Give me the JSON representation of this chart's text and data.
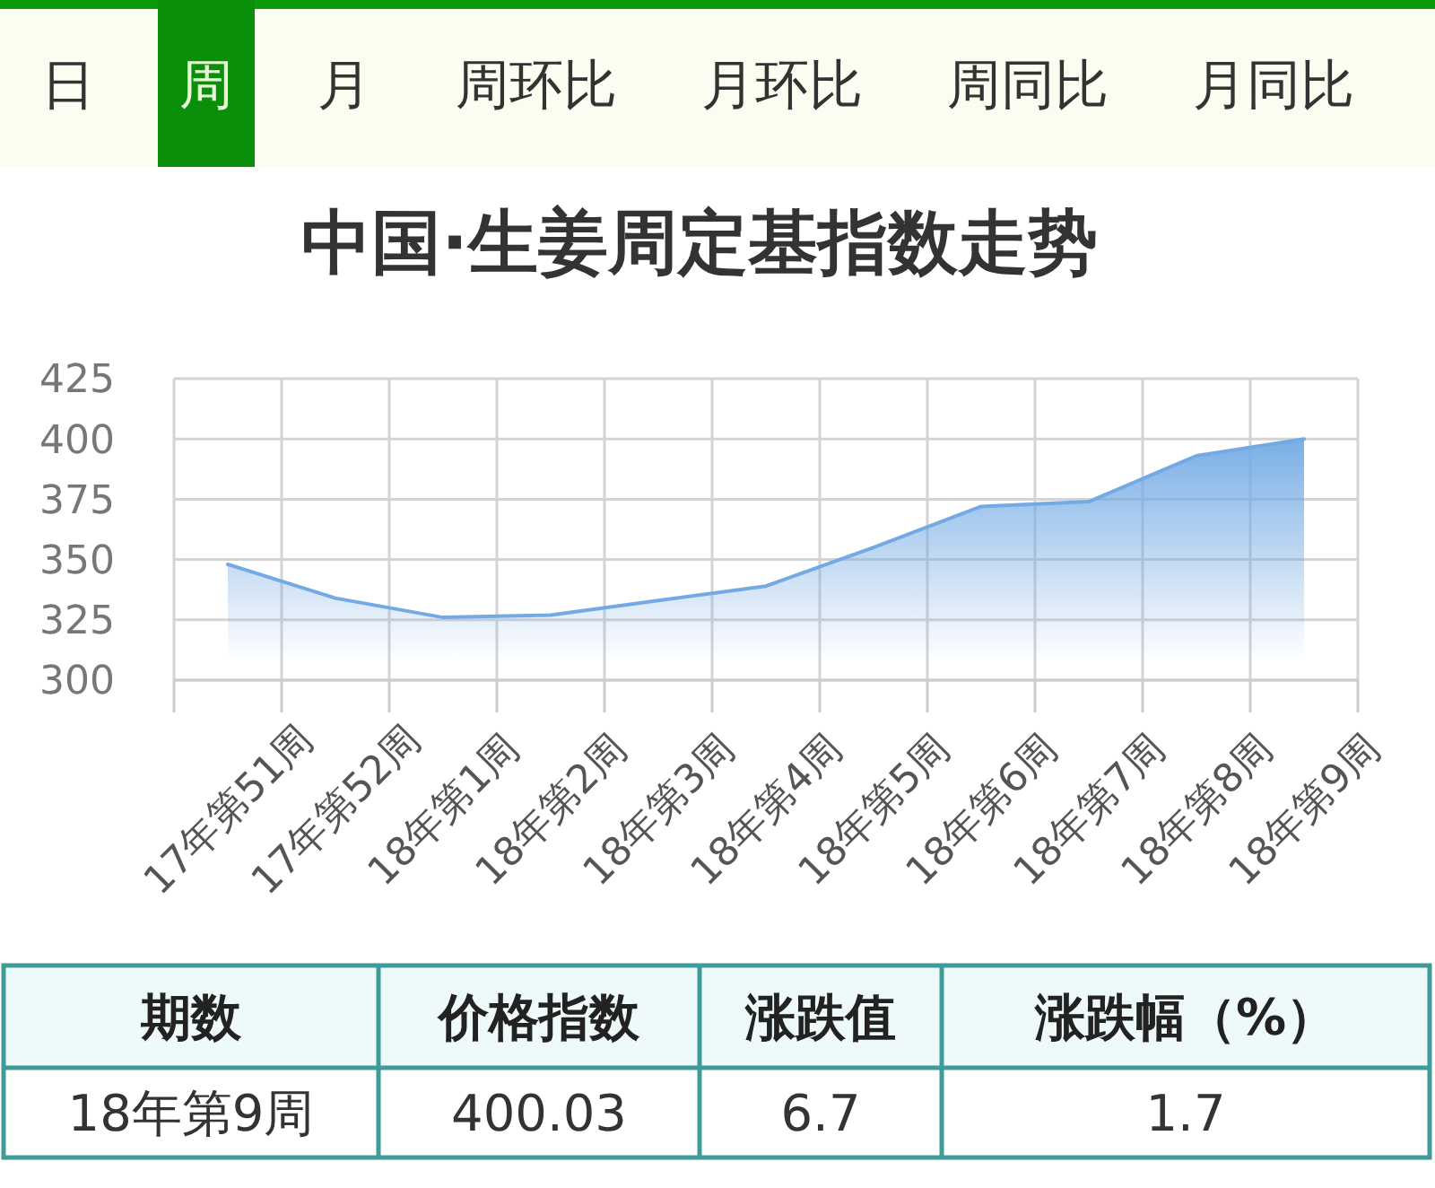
{
  "chart_data": [
    {
      "type": "other",
      "annotations": [
        "日",
        "周",
        "月",
        "周环比",
        "月环比",
        "周同比",
        "月同比"
      ]
    },
    {
      "type": "area",
      "title": "中国·生姜周定基指数走势",
      "categories": [
        "17年第51周",
        "17年第52周",
        "18年第1周",
        "18年第2周",
        "18年第3周",
        "18年第4周",
        "18年第5周",
        "18年第6周",
        "18年第7周",
        "18年第8周",
        "18年第9周"
      ],
      "values": [
        348,
        334,
        326,
        327,
        333,
        339,
        355,
        372,
        374,
        393,
        400
      ],
      "color": "#73aae4",
      "ylim": [
        300,
        425
      ],
      "yticks": [
        300,
        325,
        350,
        375,
        400,
        425
      ],
      "grid": true
    },
    {
      "type": "other",
      "annotations": [
        "期数",
        "价格指数",
        "涨跌值",
        "涨跌幅（%）",
        "18年第9周",
        "400.03",
        "6.7",
        "1.7"
      ]
    }
  ]
}
